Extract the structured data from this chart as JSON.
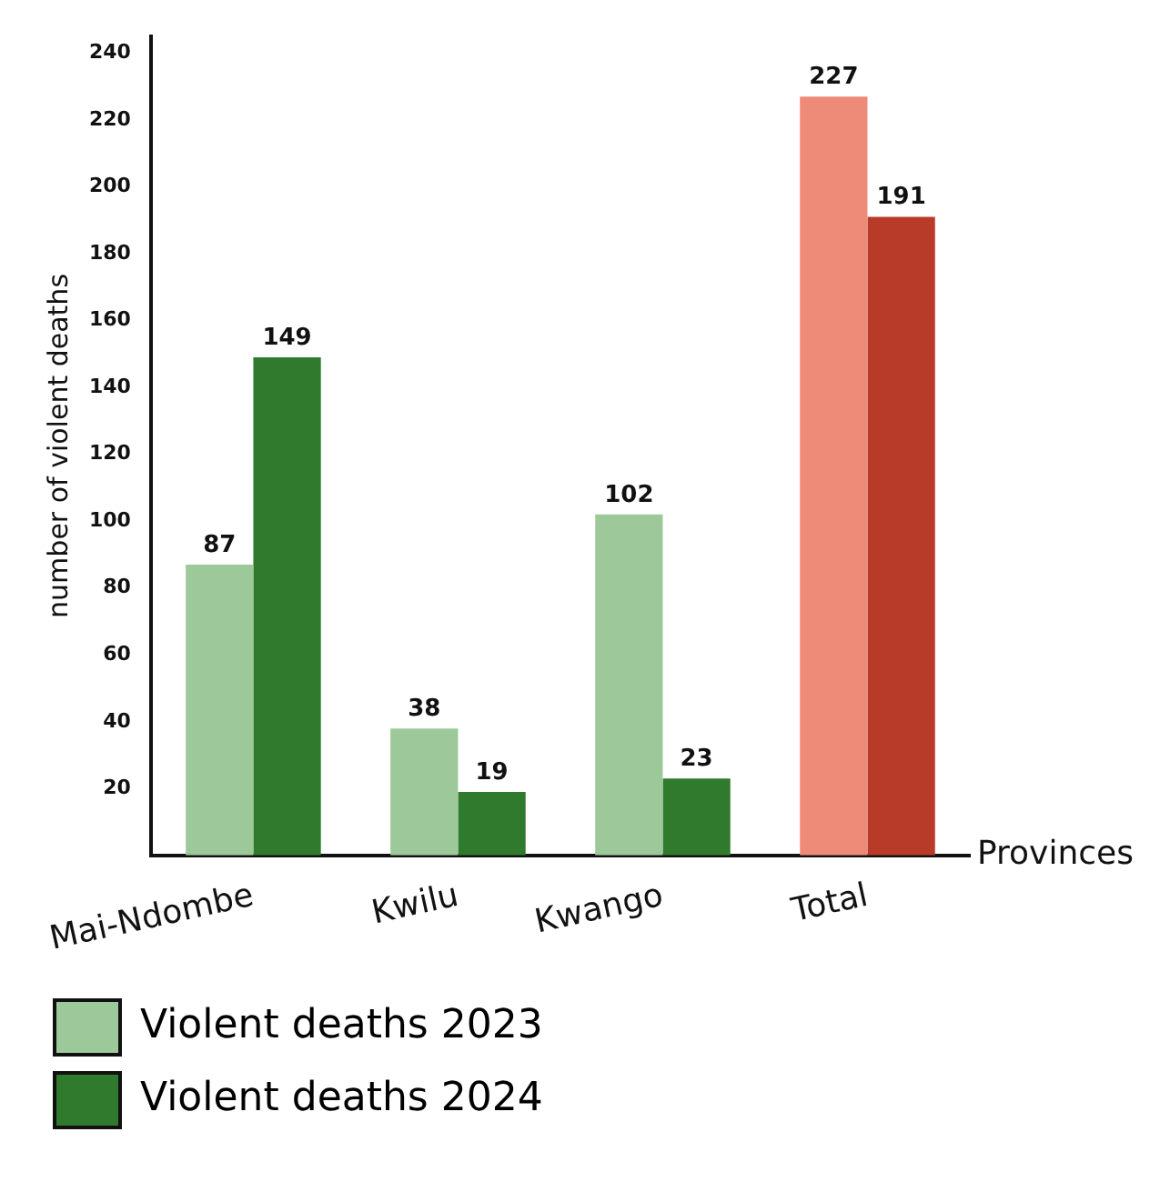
{
  "chart_data": {
    "type": "bar",
    "xlabel": "Provinces",
    "ylabel": "number of violent deaths",
    "categories": [
      "Mai-Ndombe",
      "Kwilu",
      "Kwango",
      "Total"
    ],
    "series": [
      {
        "name": "Violent deaths 2023",
        "color": "#9dc89a",
        "colors": [
          "#9dc89a",
          "#9dc89a",
          "#9dc89a",
          "#ee8a78"
        ],
        "values": [
          87,
          38,
          102,
          227
        ]
      },
      {
        "name": "Violent deaths 2024",
        "color": "#2f7a2c",
        "colors": [
          "#2f7a2c",
          "#2f7a2c",
          "#2f7a2c",
          "#b83a28"
        ],
        "values": [
          149,
          19,
          23,
          191
        ]
      }
    ],
    "ylim": [
      0,
      245
    ],
    "yticks": [
      20,
      40,
      60,
      80,
      100,
      120,
      140,
      160,
      180,
      200,
      220,
      240
    ],
    "grid": false,
    "legend": "bottom left",
    "data_labels": true
  }
}
